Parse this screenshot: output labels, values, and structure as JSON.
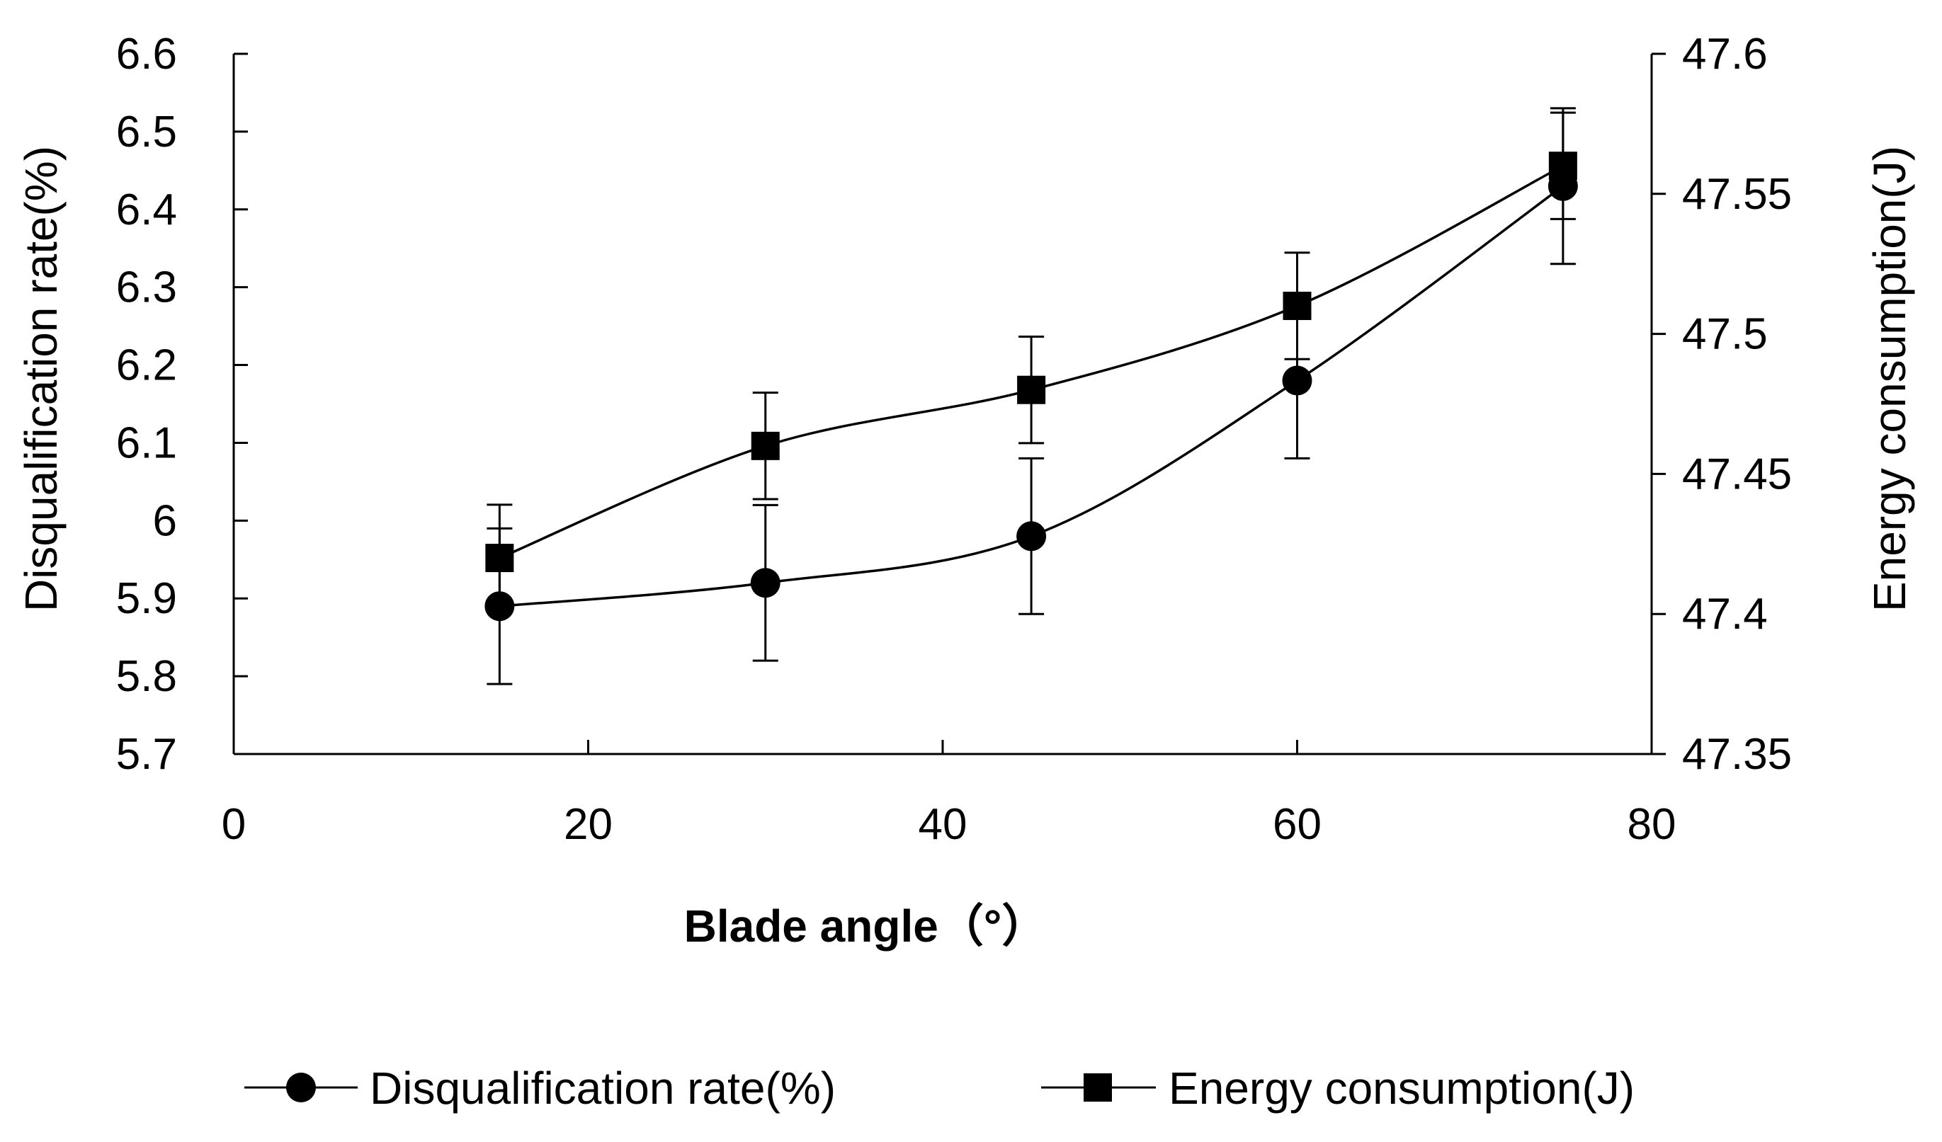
{
  "chart_data": {
    "type": "line",
    "xlabel": "Blade angle（°）",
    "ylabel_left": "Disqualification rate(%)",
    "ylabel_right": "Energy consumption(J)",
    "xlim": [
      0,
      80
    ],
    "x_ticks": [
      "0",
      "20",
      "40",
      "60",
      "80"
    ],
    "ylim_left": [
      5.7,
      6.6
    ],
    "y_ticks_left": [
      "5.7",
      "5.8",
      "5.9",
      "6",
      "6.1",
      "6.2",
      "6.3",
      "6.4",
      "6.5",
      "6.6"
    ],
    "ylim_right": [
      47.35,
      47.6
    ],
    "y_ticks_right": [
      "47.35",
      "47.4",
      "47.45",
      "47.5",
      "47.55",
      "47.6"
    ],
    "grid": false,
    "legend_position": "bottom",
    "series": [
      {
        "name": "Disqualification rate(%)",
        "axis": "left",
        "marker": "circle",
        "x": [
          15,
          30,
          45,
          60,
          75
        ],
        "values": [
          5.89,
          5.92,
          5.98,
          6.18,
          6.43
        ],
        "error": [
          0.1,
          0.1,
          0.1,
          0.1,
          0.1
        ]
      },
      {
        "name": "Energy consumption(J)",
        "axis": "right",
        "marker": "square",
        "x": [
          15,
          30,
          45,
          60,
          75
        ],
        "values": [
          47.42,
          47.46,
          47.48,
          47.51,
          47.56
        ],
        "error": [
          0.019,
          0.019,
          0.019,
          0.019,
          0.019
        ]
      }
    ]
  }
}
